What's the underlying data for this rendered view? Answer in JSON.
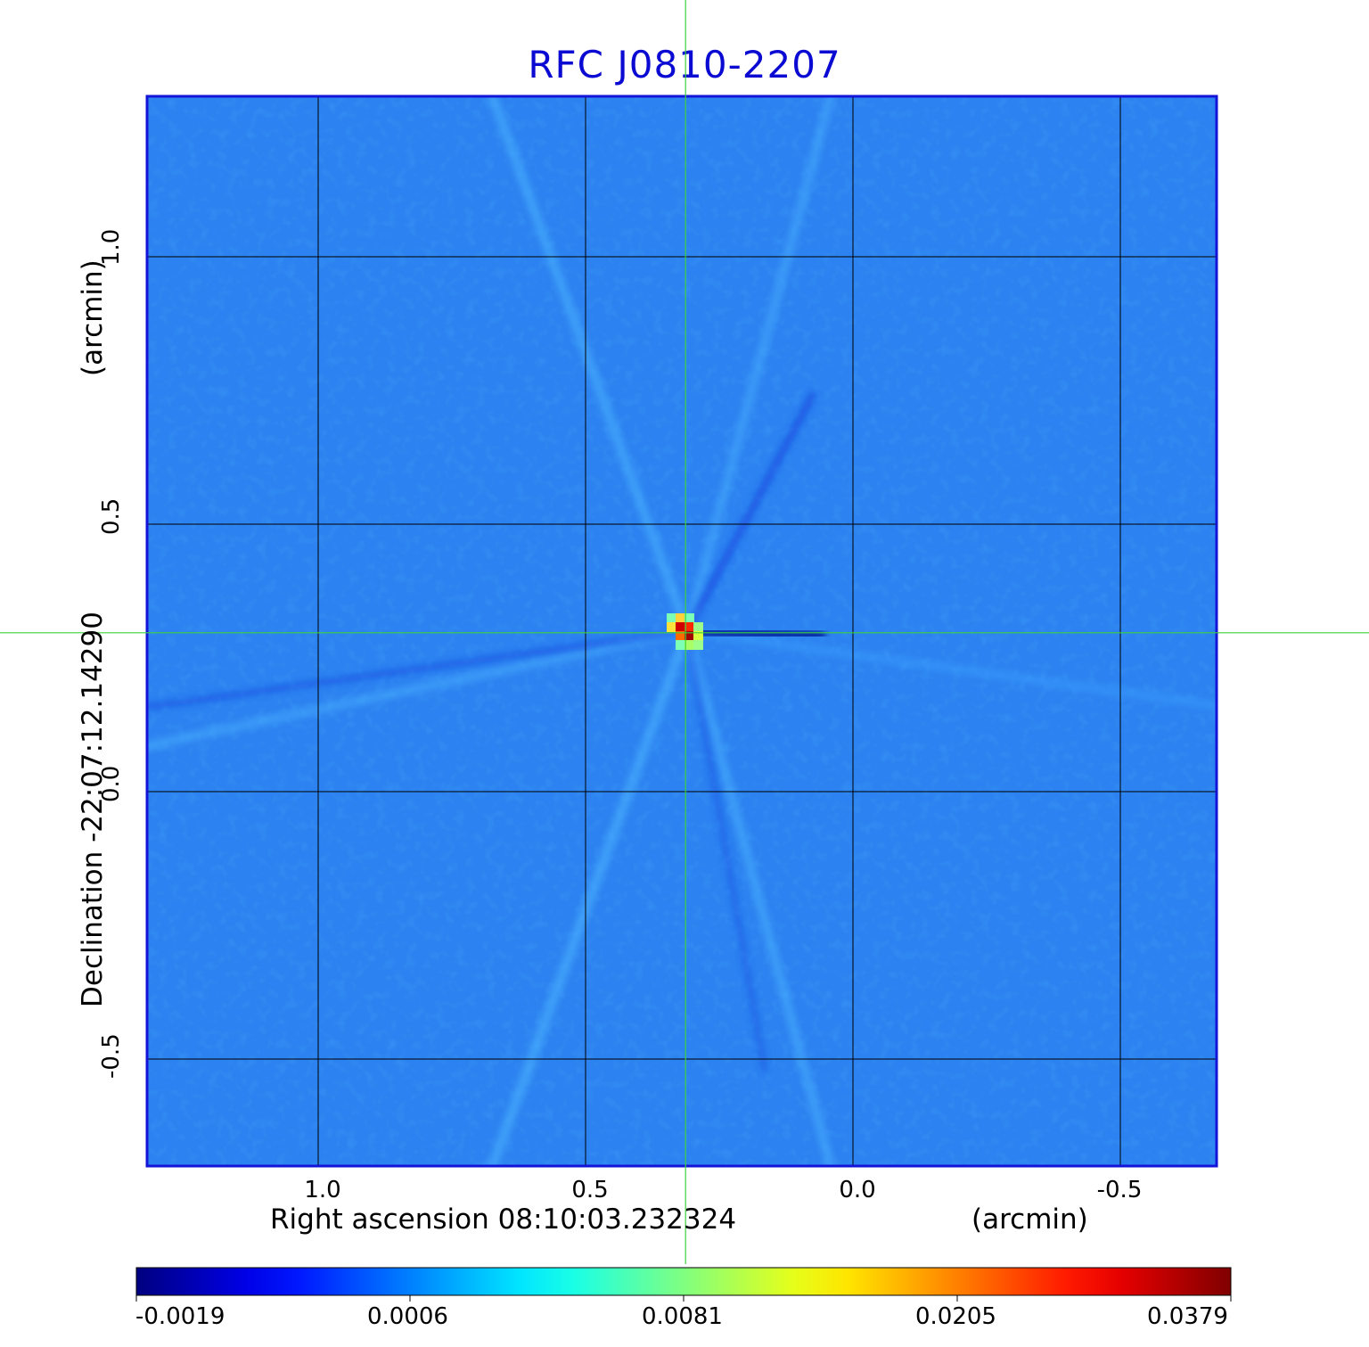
{
  "chart_data": {
    "type": "heatmap",
    "title": "RFC J0810-2207",
    "xlabel": "Right ascension  08:10:03.232324",
    "xlabel_unit": "(arcmin)",
    "ylabel": "Declination  -22:07:12.14290",
    "ylabel_unit": "(arcmin)",
    "x_ticks": [
      "1.0",
      "0.5",
      "0.0",
      "-0.5"
    ],
    "x_tick_values": [
      1.0,
      0.5,
      0.0,
      -0.5
    ],
    "y_ticks": [
      "1.0",
      "0.5",
      "0.0",
      "-0.5"
    ],
    "y_tick_values": [
      1.0,
      0.5,
      0.0,
      -0.5
    ],
    "xlim": [
      1.32,
      -0.68
    ],
    "ylim": [
      -0.7,
      1.3
    ],
    "x_reversed": true,
    "grid": true,
    "crosshair": {
      "x": 0.313,
      "y": 0.297
    },
    "peak": {
      "x": 0.31,
      "y": 0.3,
      "value": 0.0379
    },
    "colormap": "jet",
    "colorbar_ticks": [
      "-0.0019",
      "0.0006",
      "0.0081",
      "0.0205",
      "0.0379"
    ],
    "colorbar_values": [
      -0.0019,
      0.0006,
      0.0081,
      0.0205,
      0.0379
    ],
    "colors": {
      "title": "#0a0ad2",
      "frame": "#1414d8",
      "background_field": "#2c82f0",
      "crosshair": "#3cd23c",
      "grid": "#000000"
    }
  }
}
